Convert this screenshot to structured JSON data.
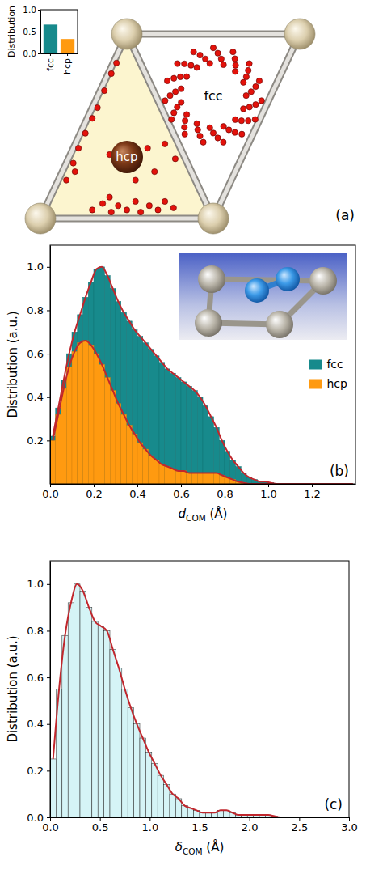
{
  "chart_data": [
    {
      "type": "scatter",
      "title": "(a)",
      "annotations": [
        "hcp",
        "fcc"
      ],
      "color": "#e3120b",
      "marker": "circle",
      "tick_labels": false,
      "xlim": [
        0,
        1.5
      ],
      "ylim": [
        0,
        0.866
      ],
      "x": [
        1.19,
        1.245,
        1.174,
        1.202,
        1.127,
        1.125,
        1.059,
        1.026,
        0.98,
        0.923,
        0.905,
        0.833,
        0.846,
        0.772,
        0.814,
        0.75,
        0.814,
        0.772,
        0.846,
        0.833,
        0.905,
        0.923,
        0.98,
        1.026,
        1.059,
        1.125,
        1.127,
        1.202,
        1.174,
        1.245,
        1.219,
        1.266,
        1.191,
        1.208,
        1.129,
        1.114,
        1.046,
        1.0,
        0.954,
        0.886,
        0.871,
        0.792,
        0.809,
        0.734,
        0.781,
        0.721,
        0.791,
        0.758,
        0.837,
        0.835,
        0.91,
        0.942,
        1.0,
        1.058,
        1.09,
        1.165,
        1.163,
        1.242,
        1.209,
        1.279,
        0.3,
        0.36,
        0.41,
        0.45,
        0.5,
        0.55,
        0.58,
        0.63,
        0.68,
        0.72,
        0.77,
        0.4,
        0.15,
        0.19,
        0.22,
        0.26,
        0.3,
        0.33,
        0.37,
        0.41,
        0.44,
        0.2,
        0.4,
        0.62,
        0.55,
        0.66,
        0.72,
        0.78
      ],
      "values": [
        0.577,
        0.619,
        0.639,
        0.695,
        0.69,
        0.75,
        0.722,
        0.776,
        0.728,
        0.767,
        0.709,
        0.726,
        0.666,
        0.658,
        0.609,
        0.577,
        0.545,
        0.496,
        0.488,
        0.428,
        0.445,
        0.387,
        0.426,
        0.378,
        0.432,
        0.404,
        0.464,
        0.459,
        0.515,
        0.535,
        0.595,
        0.646,
        0.665,
        0.727,
        0.719,
        0.782,
        0.749,
        0.801,
        0.749,
        0.782,
        0.719,
        0.727,
        0.665,
        0.646,
        0.595,
        0.553,
        0.523,
        0.465,
        0.459,
        0.396,
        0.416,
        0.358,
        0.401,
        0.358,
        0.416,
        0.396,
        0.459,
        0.465,
        0.523,
        0.553,
        0.04,
        0.07,
        0.03,
        0.06,
        0.04,
        0.08,
        0.03,
        0.06,
        0.04,
        0.08,
        0.05,
        0.1,
        0.18,
        0.26,
        0.33,
        0.4,
        0.47,
        0.52,
        0.6,
        0.68,
        0.73,
        0.22,
        0.3,
        0.33,
        0.18,
        0.22,
        0.35,
        0.28
      ]
    },
    {
      "type": "bar",
      "ylabel": "Distribution",
      "categories": [
        "fcc",
        "hcp"
      ],
      "values": [
        0.66,
        0.33
      ],
      "colors": [
        "#178a8c",
        "#ff9a10"
      ],
      "ylim": [
        0,
        1
      ],
      "yticks": [
        {
          "value": 0,
          "label": "0.0"
        },
        0.5,
        {
          "value": 1,
          "label": "1.0"
        }
      ]
    },
    {
      "type": "histogram",
      "title": "(b)",
      "xlabel": "dCOM (Å)",
      "ylabel": "Distribution (a.u.)",
      "legend": "right",
      "xlim": [
        0,
        1.4
      ],
      "ylim": [
        0,
        1.1
      ],
      "xticks": [
        {
          "value": 0,
          "label": "0.0"
        },
        0.2,
        0.4,
        0.6,
        0.8,
        {
          "value": 1,
          "label": "1.0"
        },
        1.2
      ],
      "yticks": [
        0.2,
        0.4,
        0.6,
        0.8,
        {
          "value": 1,
          "label": "1.0"
        }
      ],
      "bins": [
        0,
        0.025,
        0.05,
        0.075,
        0.1,
        0.125,
        0.15,
        0.175,
        0.2,
        0.225,
        0.25,
        0.275,
        0.3,
        0.325,
        0.35,
        0.375,
        0.4,
        0.425,
        0.45,
        0.475,
        0.5,
        0.525,
        0.55,
        0.575,
        0.6,
        0.625,
        0.65,
        0.675,
        0.7,
        0.725,
        0.75,
        0.775,
        0.8,
        0.825,
        0.85,
        0.875,
        0.9,
        0.925,
        0.95,
        0.975,
        1.0,
        1.025,
        1.05,
        1.075,
        1.1,
        1.125,
        1.15,
        1.175,
        1.2,
        1.225,
        1.25,
        1.275,
        1.3,
        1.325,
        1.35,
        1.375,
        1.4
      ],
      "series": [
        {
          "name": "fcc",
          "color": "#178a8c",
          "values": [
            0.22,
            0.35,
            0.48,
            0.6,
            0.7,
            0.78,
            0.86,
            0.93,
            0.99,
            1.0,
            0.96,
            0.9,
            0.84,
            0.79,
            0.75,
            0.71,
            0.68,
            0.65,
            0.62,
            0.59,
            0.56,
            0.53,
            0.51,
            0.49,
            0.47,
            0.45,
            0.43,
            0.4,
            0.36,
            0.31,
            0.26,
            0.2,
            0.15,
            0.11,
            0.08,
            0.05,
            0.03,
            0.02,
            0.01,
            0.01,
            0.005,
            0,
            0,
            0,
            0,
            0,
            0,
            0,
            0,
            0,
            0,
            0,
            0,
            0,
            0,
            0
          ]
        },
        {
          "name": "hcp",
          "color": "#ff9a10",
          "values": [
            0.2,
            0.32,
            0.44,
            0.54,
            0.61,
            0.65,
            0.66,
            0.64,
            0.6,
            0.55,
            0.49,
            0.43,
            0.37,
            0.32,
            0.27,
            0.23,
            0.19,
            0.16,
            0.13,
            0.11,
            0.09,
            0.08,
            0.07,
            0.06,
            0.06,
            0.05,
            0.05,
            0.05,
            0.05,
            0.05,
            0.05,
            0.04,
            0.03,
            0.02,
            0.01,
            0.005,
            0,
            0,
            0,
            0,
            0,
            0,
            0,
            0,
            0,
            0,
            0,
            0,
            0,
            0,
            0,
            0,
            0,
            0,
            0,
            0
          ]
        }
      ]
    },
    {
      "type": "histogram",
      "title": "(c)",
      "xlabel": "δCOM (Å)",
      "ylabel": "Distribution (a.u.)",
      "color": "#d5f4f6",
      "xlim": [
        0,
        3
      ],
      "ylim": [
        0,
        1.1
      ],
      "xticks": [
        {
          "value": 0,
          "label": "0.0"
        },
        0.5,
        {
          "value": 1,
          "label": "1.0"
        },
        1.5,
        {
          "value": 2,
          "label": "2.0"
        },
        2.5,
        {
          "value": 3,
          "label": "3.0"
        }
      ],
      "yticks": [
        {
          "value": 0,
          "label": "0.0"
        },
        0.2,
        0.4,
        0.6,
        0.8,
        {
          "value": 1,
          "label": "1.0"
        }
      ],
      "bins": [
        0,
        0.06,
        0.12,
        0.18,
        0.24,
        0.3,
        0.36,
        0.42,
        0.48,
        0.54,
        0.6,
        0.66,
        0.72,
        0.78,
        0.84,
        0.9,
        0.96,
        1.02,
        1.08,
        1.14,
        1.2,
        1.26,
        1.32,
        1.38,
        1.44,
        1.5,
        1.56,
        1.62,
        1.68,
        1.74,
        1.8,
        1.86,
        1.92,
        1.98,
        2.04,
        2.1,
        2.16,
        2.22,
        2.28,
        2.34,
        2.4,
        2.46,
        2.52,
        2.58,
        2.64,
        2.7,
        2.76,
        2.82,
        2.88,
        2.94,
        3.0
      ],
      "values": [
        0.25,
        0.55,
        0.78,
        0.92,
        1.0,
        0.97,
        0.9,
        0.84,
        0.82,
        0.8,
        0.72,
        0.64,
        0.55,
        0.47,
        0.4,
        0.34,
        0.28,
        0.23,
        0.18,
        0.14,
        0.1,
        0.08,
        0.05,
        0.04,
        0.03,
        0.02,
        0.02,
        0.02,
        0.03,
        0.03,
        0.02,
        0.01,
        0.01,
        0.01,
        0.01,
        0.01,
        0.01,
        0.005,
        0,
        0,
        0,
        0,
        0,
        0,
        0,
        0,
        0,
        0,
        0,
        0
      ]
    }
  ]
}
